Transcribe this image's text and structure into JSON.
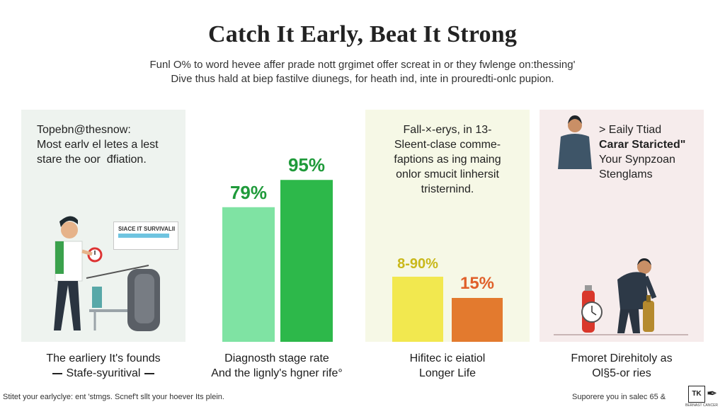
{
  "header": {
    "title": "Catch It Early, Beat It Strong",
    "subtitle_line1": "Funl O% to word hevee affer prade nott grgimet offer screat in or they fwlenge on:thessing'",
    "subtitle_line2": "Dive thus hald at biep fastilve diunegs, for heath ind, inte in prouredti-onlc pupion."
  },
  "panel1": {
    "text_line1": "Topebn@thesnow:",
    "text_line2": "Most earlv el letes a lest",
    "text_line3": "stare the oor  đfiation.",
    "screen_label": "SIACE IT SURVIVALII",
    "caption_line1": "The earliery It's founds",
    "caption_line2": "Stafe-syuritival"
  },
  "chart_data": {
    "type": "bar",
    "categories": [
      "",
      ""
    ],
    "values": [
      79,
      95
    ],
    "labels": [
      "79%",
      "95%"
    ],
    "colors": [
      "#7fe3a3",
      "#2db84a"
    ],
    "ylim": [
      0,
      100
    ],
    "caption_line1": "Diagnosth stage rate",
    "caption_line2": "And the lignly's hgner rife°"
  },
  "panel3": {
    "text_line1": "Fall-×-erys, in 13-",
    "text_line2": "Sleent-clase comme-",
    "text_line3": "faptions as ing maing",
    "text_line4": "onlor smucit linhersit",
    "text_line5": "tristernind.",
    "bars": [
      {
        "label": "8-90%",
        "value": 90,
        "color": "#f2e84f",
        "label_color": "#c9b81a"
      },
      {
        "label": "15%",
        "value": 15,
        "color": "#e37a2e",
        "label_color": "#e0602a"
      }
    ],
    "caption_line1": "Hifitec ic eiatiol",
    "caption_line2": "Longer Life"
  },
  "panel4": {
    "text_line1": "> Eaily Ttiad",
    "text_line2": "Carar Staricted\"",
    "text_line3": "Your Synpzoan",
    "text_line4": "Stenglams",
    "caption_line1": "Fmoret Direhitoly as",
    "caption_line2": "Ol§5-or ries"
  },
  "footer": {
    "left_text": "Stitet your earlyclye: ent 'stmgs. Scnef't sllt your hoever Its plein.",
    "right_text": "Suporere you in salec 65 &",
    "logo_text": "TK",
    "logo_sub": "BERNAST CANCER"
  },
  "colors": {
    "panel1_bg": "#eef3ef",
    "panel3_bg": "#f6f8e6",
    "panel4_bg": "#f6ecec",
    "dark_green": "#2db84a",
    "light_green": "#7fe3a3"
  }
}
